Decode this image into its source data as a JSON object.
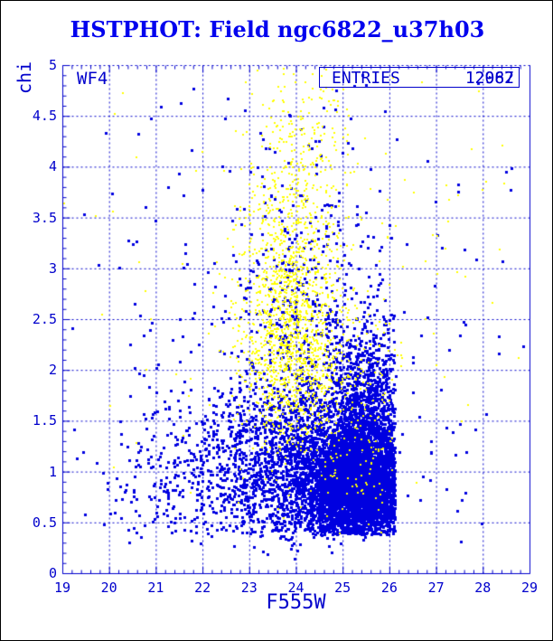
{
  "header": {
    "title": "HSTPHOT: Field ngc6822_u37h03",
    "title_color": "#0202ee"
  },
  "plot": {
    "chip_label": "WF4",
    "stats": {
      "label": "ENTRIES",
      "value_primary": "12987",
      "value_overlay": "2062"
    },
    "frame_color": "#0000cc",
    "grid_color": "#0000cc"
  },
  "chart_data": {
    "type": "scatter",
    "title": "HSTPHOT: Field ngc6822_u37h03",
    "xlabel": "F555W",
    "ylabel": "chi",
    "xlim": [
      19,
      29
    ],
    "ylim": [
      0,
      5
    ],
    "grid": true,
    "x_tick_labels": [
      "19",
      "20",
      "21",
      "22",
      "23",
      "24",
      "25",
      "26",
      "27",
      "28",
      "29"
    ],
    "y_tick_labels": [
      "0",
      "0.5",
      "1",
      "1.5",
      "2",
      "2.5",
      "3",
      "3.5",
      "4",
      "4.5",
      "5"
    ],
    "x_major_step": 1,
    "x_minor_step": 0.2,
    "y_major_step": 0.5,
    "y_minor_step": 0.1,
    "series": [
      {
        "name": "blue_points",
        "entries": 12987,
        "color": "#0000e0",
        "marker_px": 3,
        "clusters": [
          {
            "cx": 25.35,
            "cy": 0.85,
            "sx": 0.55,
            "sy": 0.28,
            "n": 4200,
            "xmax": 26.12,
            "ymin": 0.38
          },
          {
            "cx": 25.55,
            "cy": 1.45,
            "sx": 0.42,
            "sy": 0.45,
            "n": 1100,
            "xmax": 26.12,
            "ymin": 0.5
          },
          {
            "cx": 24.35,
            "cy": 1.0,
            "sx": 0.95,
            "sy": 0.38,
            "n": 1600,
            "xmax": 26.1,
            "ymin": 0.4
          },
          {
            "cx": 23.0,
            "cy": 1.05,
            "sx": 1.3,
            "sy": 0.45,
            "n": 500,
            "xmax": 26.0,
            "ymin": 0.35
          },
          {
            "cx": 21.6,
            "cy": 0.85,
            "sx": 1.1,
            "sy": 0.35,
            "n": 130,
            "xmax": 26.0,
            "ymin": 0.3
          },
          {
            "cx": 24.0,
            "cy": 2.6,
            "sx": 0.8,
            "sy": 1.0,
            "n": 320,
            "ymax": 4.97
          },
          {
            "cx": 24.85,
            "cy": 2.2,
            "sx": 1.0,
            "sy": 0.5,
            "n": 260,
            "xmax": 26.1
          },
          {
            "cx": 23.5,
            "cy": 2.5,
            "sx": 2.5,
            "sy": 1.5,
            "n": 170,
            "ymin": 0.3,
            "ymax": 4.95
          },
          {
            "cx": 23.8,
            "cy": 0.42,
            "sx": 1.0,
            "sy": 0.12,
            "n": 60,
            "ymin": 0.18
          },
          {
            "cx": 27.2,
            "cy": 2.0,
            "sx": 0.9,
            "sy": 1.3,
            "n": 22,
            "xmin": 26.3
          }
        ]
      },
      {
        "name": "yellow_points",
        "entries": 2062,
        "color": "#ffff00",
        "marker_px": 2,
        "clusters": [
          {
            "cx": 23.9,
            "cy": 2.45,
            "sx": 0.52,
            "sy": 0.5,
            "n": 780
          },
          {
            "cx": 23.85,
            "cy": 3.3,
            "sx": 0.5,
            "sy": 0.6,
            "n": 430,
            "ymax": 4.98
          },
          {
            "cx": 24.05,
            "cy": 1.85,
            "sx": 0.6,
            "sy": 0.32,
            "n": 300
          },
          {
            "cx": 24.3,
            "cy": 4.3,
            "sx": 0.55,
            "sy": 0.45,
            "n": 130,
            "ymax": 4.98
          },
          {
            "cx": 25.2,
            "cy": 2.0,
            "sx": 0.7,
            "sy": 0.45,
            "n": 120,
            "xmax": 26.1
          },
          {
            "cx": 24.0,
            "cy": 2.8,
            "sx": 2.2,
            "sy": 1.2,
            "n": 160,
            "ymin": 0.5,
            "ymax": 4.98
          },
          {
            "cx": 25.3,
            "cy": 0.95,
            "sx": 0.5,
            "sy": 0.3,
            "n": 60,
            "xmax": 26.1
          }
        ]
      }
    ]
  }
}
